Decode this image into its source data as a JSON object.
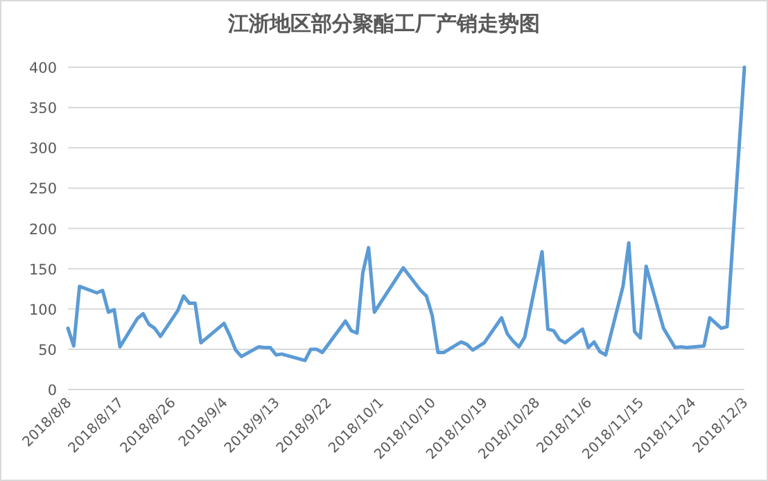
{
  "chart_data": {
    "type": "line",
    "title": "江浙地区部分聚酯工厂产销走势图",
    "x": [
      "2018-08-08",
      "2018-08-09",
      "2018-08-10",
      "2018-08-13",
      "2018-08-14",
      "2018-08-15",
      "2018-08-16",
      "2018-08-17",
      "2018-08-20",
      "2018-08-21",
      "2018-08-22",
      "2018-08-23",
      "2018-08-24",
      "2018-08-27",
      "2018-08-28",
      "2018-08-29",
      "2018-08-30",
      "2018-08-31",
      "2018-09-04",
      "2018-09-05",
      "2018-09-06",
      "2018-09-07",
      "2018-09-10",
      "2018-09-11",
      "2018-09-12",
      "2018-09-13",
      "2018-09-14",
      "2018-09-18",
      "2018-09-19",
      "2018-09-20",
      "2018-09-21",
      "2018-09-25",
      "2018-09-26",
      "2018-09-27",
      "2018-09-28",
      "2018-09-29",
      "2018-09-30",
      "2018-10-05",
      "2018-10-08",
      "2018-10-09",
      "2018-10-10",
      "2018-10-11",
      "2018-10-12",
      "2018-10-15",
      "2018-10-16",
      "2018-10-17",
      "2018-10-19",
      "2018-10-22",
      "2018-10-23",
      "2018-10-24",
      "2018-10-25",
      "2018-10-26",
      "2018-10-29",
      "2018-10-30",
      "2018-10-31",
      "2018-11-01",
      "2018-11-02",
      "2018-11-05",
      "2018-11-06",
      "2018-11-07",
      "2018-11-08",
      "2018-11-09",
      "2018-11-12",
      "2018-11-13",
      "2018-11-14",
      "2018-11-15",
      "2018-11-16",
      "2018-11-19",
      "2018-11-21",
      "2018-11-22",
      "2018-11-23",
      "2018-11-26",
      "2018-11-27",
      "2018-11-29",
      "2018-11-30",
      "2018-12-03"
    ],
    "series": [
      {
        "color": "#5b9bd5",
        "values": [
          76,
          54,
          128,
          120,
          123,
          96,
          99,
          53,
          88,
          94,
          81,
          76,
          66,
          98,
          116,
          107,
          107,
          58,
          82,
          67,
          49,
          41,
          53,
          52,
          52,
          43,
          44,
          36,
          50,
          50,
          46,
          85,
          73,
          70,
          145,
          176,
          96,
          151,
          123,
          116,
          92,
          46,
          46,
          59,
          56,
          49,
          58,
          89,
          69,
          60,
          53,
          65,
          171,
          75,
          73,
          62,
          58,
          75,
          52,
          59,
          47,
          43,
          128,
          182,
          72,
          64,
          153,
          76,
          52,
          53,
          52,
          54,
          89,
          76,
          78,
          400
        ]
      }
    ],
    "xlim": [
      "2018-08-08",
      "2018-12-03"
    ],
    "xticks": [
      {
        "value": "2018-08-08",
        "label": "2018/8/8"
      },
      {
        "value": "2018-08-17",
        "label": "2018/8/17"
      },
      {
        "value": "2018-08-26",
        "label": "2018/8/26"
      },
      {
        "value": "2018-09-04",
        "label": "2018/9/4"
      },
      {
        "value": "2018-09-13",
        "label": "2018/9/13"
      },
      {
        "value": "2018-09-22",
        "label": "2018/9/22"
      },
      {
        "value": "2018-10-01",
        "label": "2018/10/1"
      },
      {
        "value": "2018-10-10",
        "label": "2018/10/10"
      },
      {
        "value": "2018-10-19",
        "label": "2018/10/19"
      },
      {
        "value": "2018-10-28",
        "label": "2018/10/28"
      },
      {
        "value": "2018-11-06",
        "label": "2018/11/6"
      },
      {
        "value": "2018-11-15",
        "label": "2018/11/15"
      },
      {
        "value": "2018-11-24",
        "label": "2018/11/24"
      },
      {
        "value": "2018-12-03",
        "label": "2018/12/3"
      }
    ],
    "ylim": [
      0,
      400
    ],
    "yticks": [
      0,
      50,
      100,
      150,
      200,
      250,
      300,
      350,
      400
    ],
    "grid": "y",
    "marker": "none",
    "line_style": "solid"
  }
}
